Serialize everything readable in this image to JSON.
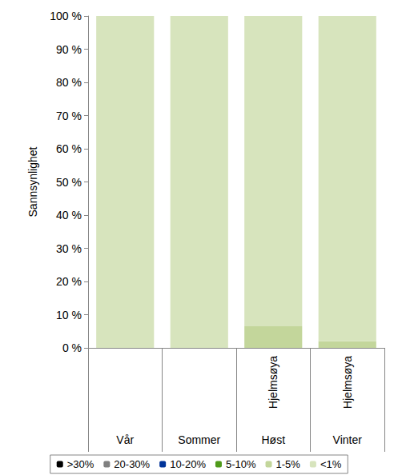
{
  "chart_data": {
    "type": "bar",
    "y_label": "Sannsynlighet",
    "categories": [
      "Vår",
      "Sommer",
      "Høst",
      "Vinter"
    ],
    "subcategories": [
      null,
      null,
      "Hjelmsøya",
      "Hjelmsøya"
    ],
    "series": [
      {
        "name": ">30%",
        "color": "#000000",
        "values": [
          0,
          0,
          0,
          0
        ]
      },
      {
        "name": "20-30%",
        "color": "#808080",
        "values": [
          0,
          0,
          0,
          0
        ]
      },
      {
        "name": "10-20%",
        "color": "#003399",
        "values": [
          0,
          0,
          0,
          0
        ]
      },
      {
        "name": "5-10%",
        "color": "#4f9a1a",
        "values": [
          0,
          0,
          0,
          0
        ]
      },
      {
        "name": "1-5%",
        "color": "#c3d69b",
        "values": [
          0,
          0,
          6.5,
          2
        ]
      },
      {
        "name": "<1%",
        "color": "#d7e4bd",
        "values": [
          100,
          100,
          93.5,
          98
        ]
      }
    ],
    "ylim": [
      0,
      100
    ],
    "yticks": [
      {
        "value": 0,
        "label": "0 %"
      },
      {
        "value": 10,
        "label": "10 %"
      },
      {
        "value": 20,
        "label": "20 %"
      },
      {
        "value": 30,
        "label": "30 %"
      },
      {
        "value": 40,
        "label": "40 %"
      },
      {
        "value": 50,
        "label": "50 %"
      },
      {
        "value": 60,
        "label": "60 %"
      },
      {
        "value": 70,
        "label": "70 %"
      },
      {
        "value": 80,
        "label": "80 %"
      },
      {
        "value": 90,
        "label": "90 %"
      },
      {
        "value": 100,
        "label": "100 %"
      }
    ],
    "stacked": true,
    "grid": false,
    "legend": "bottom",
    "data_labels": false
  }
}
